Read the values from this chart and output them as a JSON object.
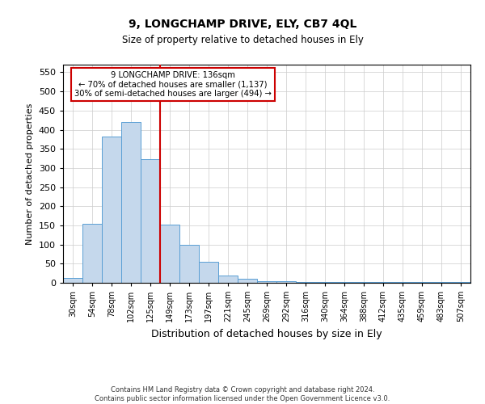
{
  "title1": "9, LONGCHAMP DRIVE, ELY, CB7 4QL",
  "title2": "Size of property relative to detached houses in Ely",
  "xlabel": "Distribution of detached houses by size in Ely",
  "ylabel": "Number of detached properties",
  "footnote": "Contains HM Land Registry data © Crown copyright and database right 2024.\nContains public sector information licensed under the Open Government Licence v3.0.",
  "bin_labels": [
    "30sqm",
    "54sqm",
    "78sqm",
    "102sqm",
    "125sqm",
    "149sqm",
    "173sqm",
    "197sqm",
    "221sqm",
    "245sqm",
    "269sqm",
    "292sqm",
    "316sqm",
    "340sqm",
    "364sqm",
    "388sqm",
    "412sqm",
    "435sqm",
    "459sqm",
    "483sqm",
    "507sqm"
  ],
  "bar_heights": [
    13,
    155,
    383,
    420,
    322,
    153,
    100,
    55,
    20,
    10,
    5,
    5,
    2,
    2,
    2,
    2,
    2,
    2,
    2,
    2,
    2
  ],
  "bar_color": "#c5d8ec",
  "bar_edge_color": "#5a9fd4",
  "red_line_x": 4.5,
  "ylim": [
    0,
    570
  ],
  "yticks": [
    0,
    50,
    100,
    150,
    200,
    250,
    300,
    350,
    400,
    450,
    500,
    550
  ],
  "annotation_title": "9 LONGCHAMP DRIVE: 136sqm",
  "annotation_line1": "← 70% of detached houses are smaller (1,137)",
  "annotation_line2": "30% of semi-detached houses are larger (494) →",
  "red_line_color": "#cc0000",
  "annotation_box_edge": "#cc0000",
  "background_color": "#ffffff",
  "grid_color": "#cccccc"
}
